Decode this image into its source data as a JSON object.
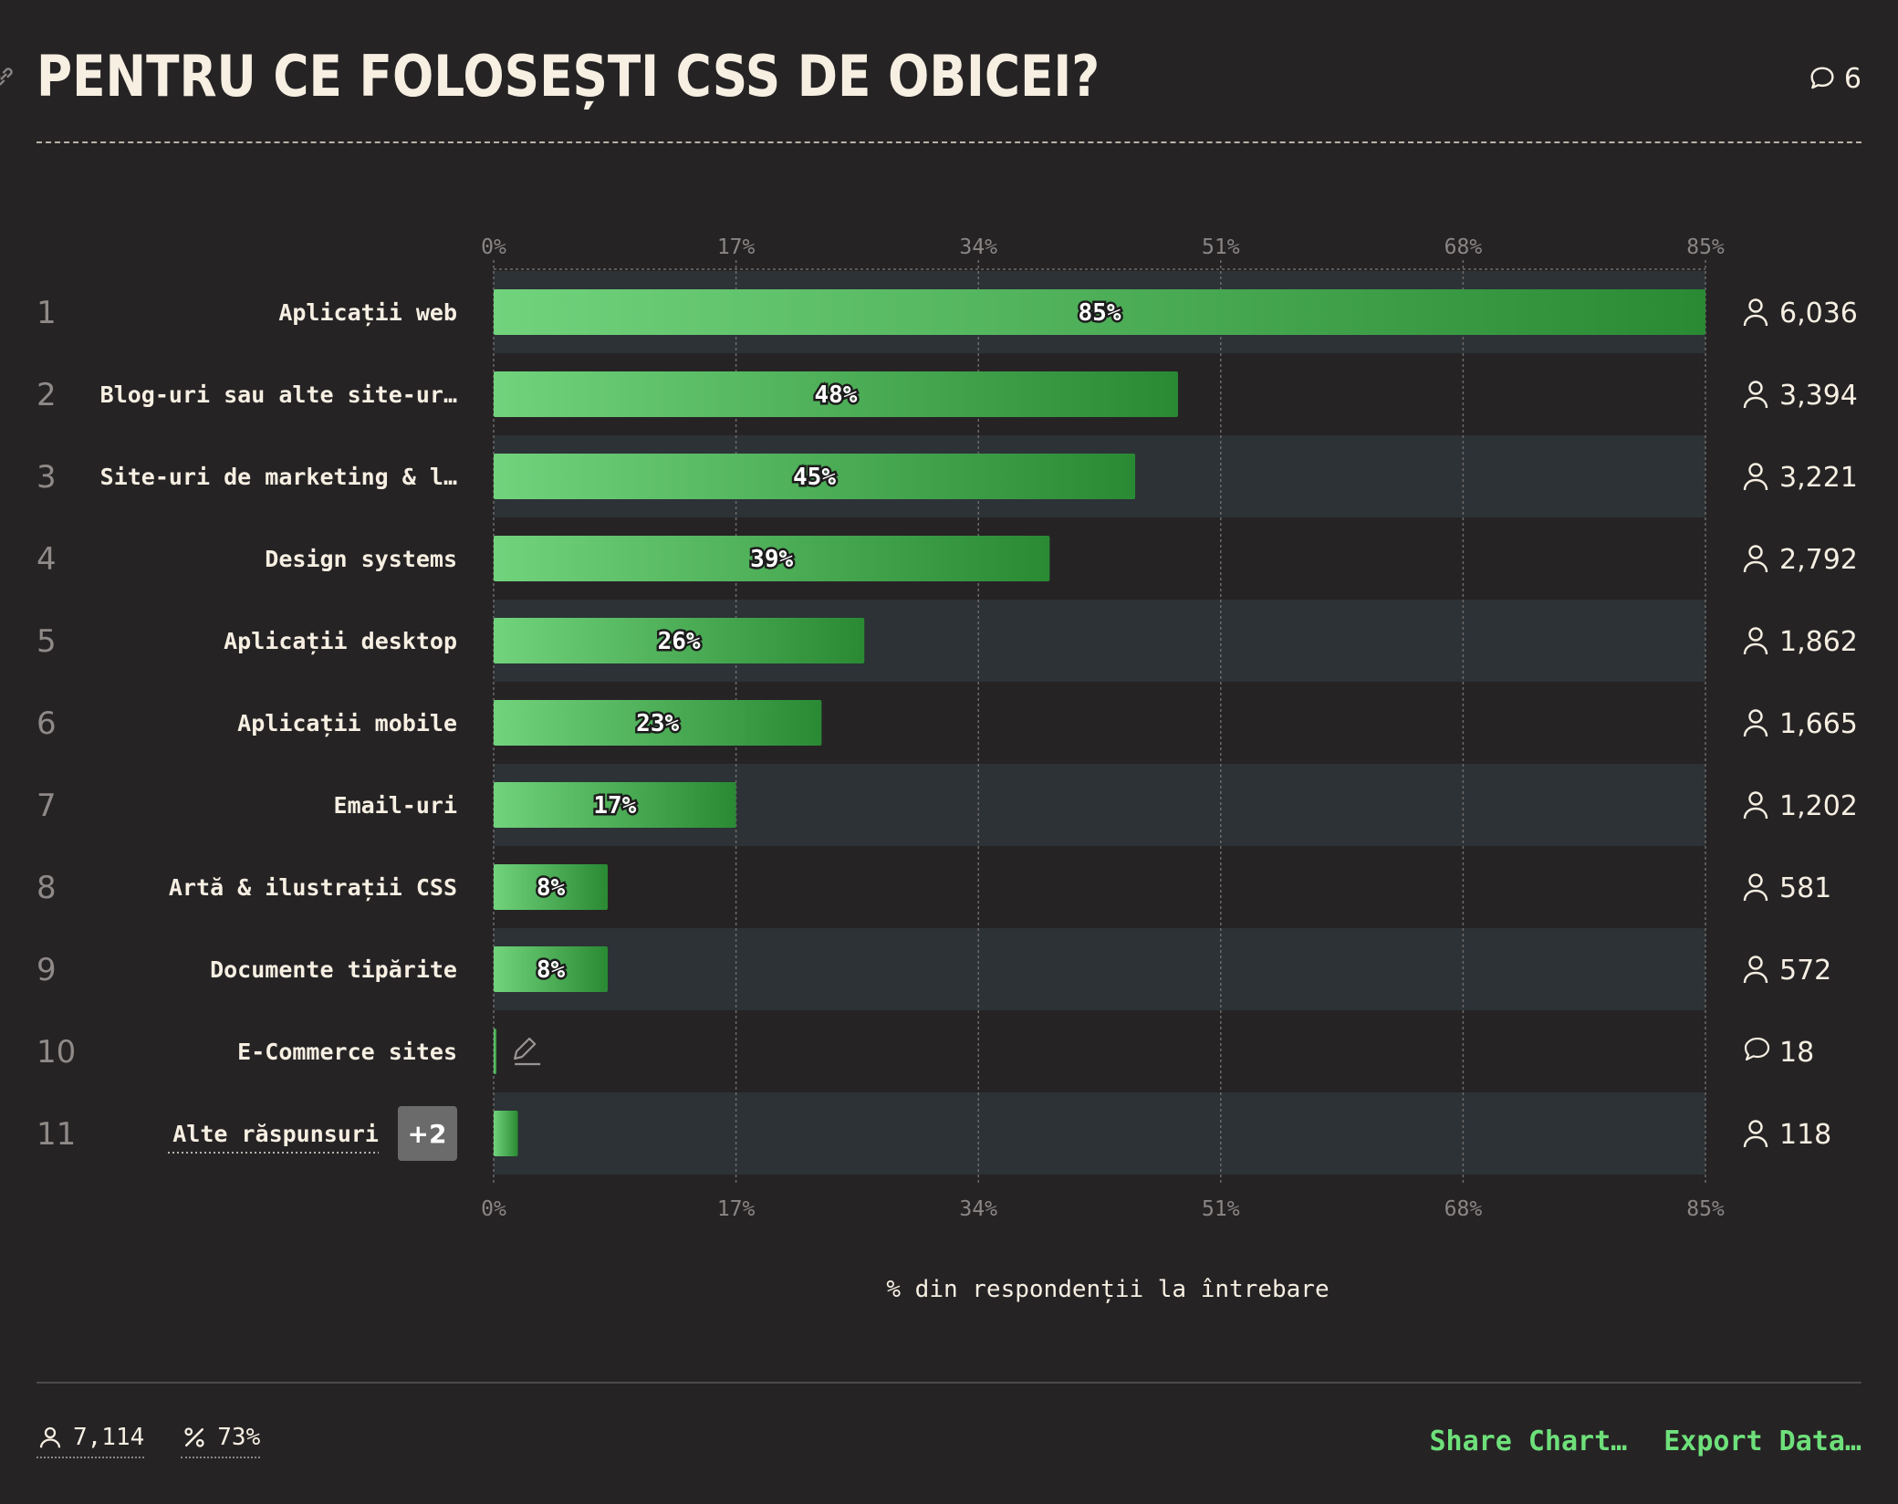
{
  "header": {
    "title": "PENTRU CE FOLOSEȘTI CSS DE OBICEI?",
    "comment_count": "6"
  },
  "footer": {
    "respondents": "7,114",
    "percent": "73%",
    "share_label": "Share Chart…",
    "export_label": "Export Data…"
  },
  "colors": {
    "background": "#262325",
    "row_stripe": "#2c3236",
    "bar_start": "#71d37c",
    "bar_end": "#2a8a34",
    "link": "#6ee07a"
  },
  "chart_data": {
    "type": "bar",
    "orientation": "horizontal",
    "xlim": [
      0,
      85
    ],
    "ticks": [
      "0%",
      "17%",
      "34%",
      "51%",
      "68%",
      "85%"
    ],
    "xlabel": "% din respondenții la întrebare",
    "grid": true,
    "rows": [
      {
        "rank": "1",
        "label": "Aplicații web",
        "value": 85,
        "value_label": "85%",
        "count": "6,036",
        "count_icon": "user-icon"
      },
      {
        "rank": "2",
        "label": "Blog-uri sau alte site-ur…",
        "value": 48,
        "value_label": "48%",
        "count": "3,394",
        "count_icon": "user-icon"
      },
      {
        "rank": "3",
        "label": "Site-uri de marketing & l…",
        "value": 45,
        "value_label": "45%",
        "count": "3,221",
        "count_icon": "user-icon"
      },
      {
        "rank": "4",
        "label": "Design systems",
        "value": 39,
        "value_label": "39%",
        "count": "2,792",
        "count_icon": "user-icon"
      },
      {
        "rank": "5",
        "label": "Aplicații desktop",
        "value": 26,
        "value_label": "26%",
        "count": "1,862",
        "count_icon": "user-icon"
      },
      {
        "rank": "6",
        "label": "Aplicații mobile",
        "value": 23,
        "value_label": "23%",
        "count": "1,665",
        "count_icon": "user-icon"
      },
      {
        "rank": "7",
        "label": "Email-uri",
        "value": 17,
        "value_label": "17%",
        "count": "1,202",
        "count_icon": "user-icon"
      },
      {
        "rank": "8",
        "label": "Artă & ilustrații CSS",
        "value": 8,
        "value_label": "8%",
        "count": "581",
        "count_icon": "user-icon"
      },
      {
        "rank": "9",
        "label": "Documente tipărite",
        "value": 8,
        "value_label": "8%",
        "count": "572",
        "count_icon": "user-icon"
      },
      {
        "rank": "10",
        "label": "E-Commerce sites",
        "value": 0.2,
        "value_label": "",
        "count": "18",
        "count_icon": "comment-icon",
        "edit_icon": true
      },
      {
        "rank": "11",
        "label": "Alte răspunsuri",
        "value": 1.7,
        "value_label": "",
        "count": "118",
        "count_icon": "user-icon",
        "badge": "+2"
      }
    ]
  }
}
